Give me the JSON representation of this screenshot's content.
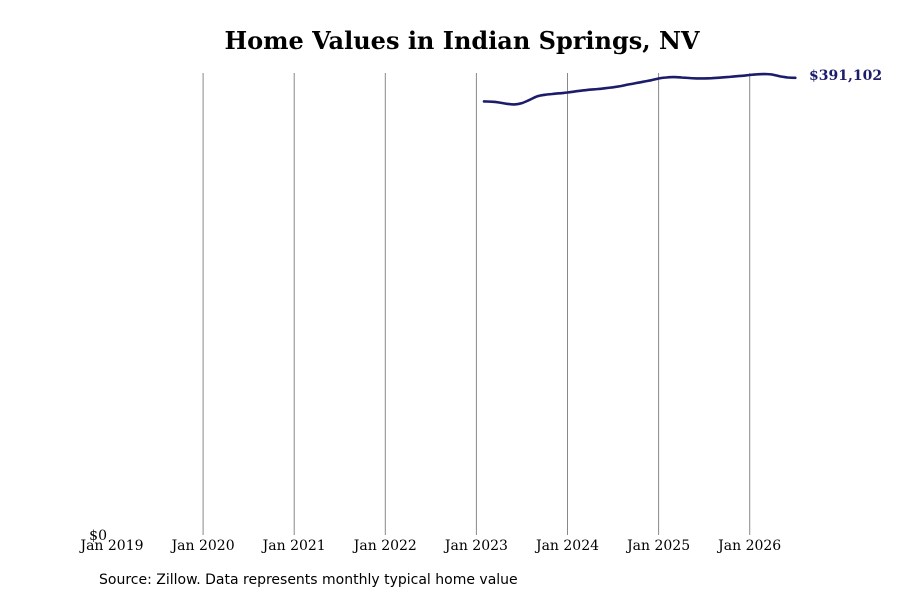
{
  "chart_data": {
    "type": "line",
    "title": "Home Values in Indian Springs, NV",
    "xlabel": "",
    "ylabel": "",
    "x_ticks": [
      "Jan 2019",
      "Jan 2020",
      "Jan 2021",
      "Jan 2022",
      "Jan 2023",
      "Jan 2024",
      "Jan 2025",
      "Jan 2026"
    ],
    "y_ticks": [
      "$0"
    ],
    "xlim": [
      "2019-01",
      "2026-07"
    ],
    "ylim": [
      0,
      391102
    ],
    "grid": "vertical",
    "line_color": "#1c1c6b",
    "grid_color": "#888888",
    "series": [
      {
        "x": [
          "2023-02",
          "2023-03",
          "2023-04",
          "2023-05",
          "2023-06",
          "2023-07",
          "2023-08",
          "2023-09",
          "2023-10",
          "2023-11",
          "2023-12",
          "2024-01",
          "2024-02",
          "2024-03",
          "2024-04",
          "2024-05",
          "2024-06",
          "2024-07",
          "2024-08",
          "2024-09",
          "2024-10",
          "2024-11",
          "2024-12",
          "2025-01",
          "2025-02",
          "2025-03",
          "2025-04",
          "2025-05",
          "2025-06",
          "2025-07",
          "2025-08",
          "2025-09",
          "2025-10",
          "2025-11",
          "2025-12",
          "2026-01",
          "2026-02",
          "2026-03",
          "2026-04",
          "2026-05",
          "2026-06",
          "2026-07"
        ],
        "y": [
          368300,
          368100,
          367400,
          366300,
          365800,
          366900,
          369600,
          372600,
          373900,
          374600,
          375200,
          375900,
          376800,
          377600,
          378300,
          378800,
          379500,
          380300,
          381300,
          382600,
          383800,
          385000,
          386200,
          387700,
          388600,
          388900,
          388600,
          388100,
          387800,
          387800,
          388000,
          388400,
          388900,
          389500,
          390000,
          390700,
          391300,
          391500,
          391000,
          389500,
          388600,
          388300
        ]
      }
    ],
    "end_label": "$391,102",
    "source": "Source: Zillow. Data represents monthly typical home value"
  }
}
